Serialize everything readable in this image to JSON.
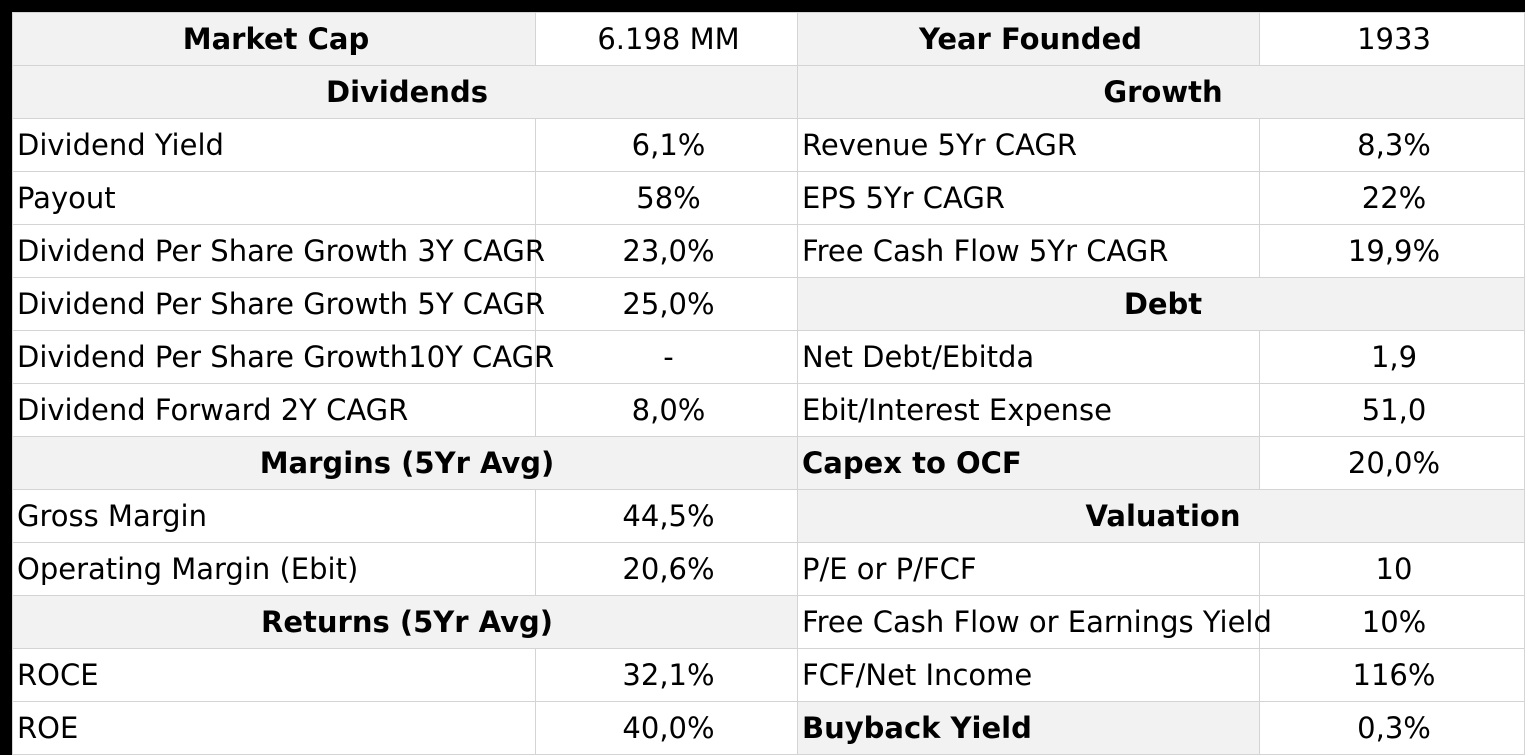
{
  "top": {
    "market_cap_label": "Market  Cap",
    "market_cap_value": "6.198 MM",
    "year_founded_label": "Year Founded",
    "year_founded_value": "1933"
  },
  "dividends": {
    "title": "Dividends",
    "rows": [
      {
        "label": "Dividend Yield",
        "value": "6,1%"
      },
      {
        "label": "Payout",
        "value": "58%"
      },
      {
        "label": "Dividend Per Share Growth 3Y CAGR",
        "value": "23,0%"
      },
      {
        "label": "Dividend Per Share Growth 5Y CAGR",
        "value": "25,0%"
      },
      {
        "label": "Dividend Per Share Growth10Y CAGR",
        "value": "-"
      },
      {
        "label": "Dividend Forward 2Y CAGR",
        "value": "8,0%"
      }
    ]
  },
  "growth": {
    "title": "Growth",
    "rows": [
      {
        "label": "Revenue 5Yr CAGR",
        "value": "8,3%"
      },
      {
        "label": "EPS 5Yr CAGR",
        "value": "22%"
      },
      {
        "label": "Free Cash Flow 5Yr CAGR",
        "value": "19,9%"
      }
    ]
  },
  "debt": {
    "title": "Debt",
    "rows": [
      {
        "label": "Net Debt/Ebitda",
        "value": "1,9"
      },
      {
        "label": "Ebit/Interest Expense",
        "value": "51,0"
      }
    ]
  },
  "capex": {
    "label": "Capex to OCF",
    "value": "20,0%"
  },
  "margins": {
    "title": "Margins (5Yr Avg)",
    "rows": [
      {
        "label": "Gross Margin",
        "value": "44,5%"
      },
      {
        "label": "Operating Margin (Ebit)",
        "value": "20,6%"
      }
    ]
  },
  "valuation": {
    "title": "Valuation",
    "rows": [
      {
        "label": "P/E or P/FCF",
        "value": "10"
      },
      {
        "label": "Free Cash Flow or Earnings Yield",
        "value": "10%"
      },
      {
        "label": "FCF/Net Income",
        "value": "116%"
      }
    ]
  },
  "returns": {
    "title": "Returns (5Yr Avg)",
    "rows": [
      {
        "label": "ROCE",
        "value": "32,1%"
      },
      {
        "label": "ROE",
        "value": "40,0%"
      }
    ]
  },
  "buyback": {
    "label": "Buyback Yield",
    "value": "0,3%"
  }
}
